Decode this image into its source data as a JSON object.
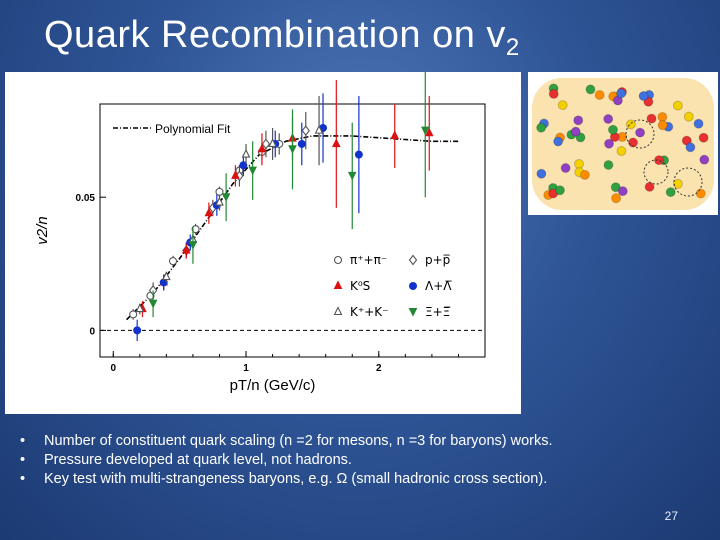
{
  "slide": {
    "title_main": "Quark Recombination on v",
    "title_sub": "2",
    "page_number": "27",
    "bullets": [
      "Number of constituent quark scaling (n =2 for mesons, n =3 for baryons) works.",
      "Pressure developed at quark level, not hadrons.",
      "Key test with multi-strangeness baryons, e.g. Ω (small hadronic cross section)."
    ]
  },
  "colors": {
    "background": "#2f5597",
    "meson_red": "#dd1111",
    "baryon_blue": "#1133cc",
    "xi_green": "#228833",
    "pion_gray": "#555555"
  },
  "chart_data": {
    "type": "scatter",
    "title": "",
    "xlabel": "pT/n (GeV/c)",
    "ylabel": "v2/n",
    "xlim": [
      -0.1,
      2.8
    ],
    "ylim": [
      -0.01,
      0.085
    ],
    "x_ticks": [
      "0",
      "1",
      "2"
    ],
    "x_tick_values": [
      0,
      1,
      2
    ],
    "y_ticks": [
      "0",
      "0.05"
    ],
    "y_tick_values": [
      0,
      0.05
    ],
    "fit": {
      "label": "Polynomial Fit",
      "points": [
        [
          0.1,
          0.004
        ],
        [
          0.3,
          0.014
        ],
        [
          0.5,
          0.027
        ],
        [
          0.7,
          0.041
        ],
        [
          0.9,
          0.055
        ],
        [
          1.1,
          0.066
        ],
        [
          1.3,
          0.071
        ],
        [
          1.5,
          0.073
        ],
        [
          1.8,
          0.073
        ],
        [
          2.1,
          0.072
        ],
        [
          2.4,
          0.071
        ],
        [
          2.6,
          0.071
        ]
      ]
    },
    "legend": [
      {
        "label": "π⁺+π⁻",
        "marker": "open-circle",
        "series": "pions"
      },
      {
        "label": "p+p̅",
        "marker": "open-diamond",
        "series": "protons"
      },
      {
        "label": "K⁰S",
        "marker": "filled-triangle",
        "series": "kshort"
      },
      {
        "label": "Λ+Λ̅",
        "marker": "filled-circle",
        "series": "lambda"
      },
      {
        "label": "K⁺+K⁻",
        "marker": "open-triangle",
        "series": "kcharged"
      },
      {
        "label": "Ξ+Ξ̅",
        "marker": "filled-star",
        "series": "xi"
      }
    ],
    "series": [
      {
        "name": "pions",
        "color": "#555555",
        "marker": "open-circle",
        "points": [
          [
            0.15,
            0.006,
            0.002
          ],
          [
            0.28,
            0.013,
            0.002
          ],
          [
            0.45,
            0.026,
            0.002
          ],
          [
            0.62,
            0.038,
            0.002
          ],
          [
            0.8,
            0.052,
            0.002
          ],
          [
            0.95,
            0.06,
            0.002
          ],
          [
            1.12,
            0.067,
            0.003
          ],
          [
            1.25,
            0.07,
            0.004
          ]
        ]
      },
      {
        "name": "protons",
        "color": "#555555",
        "marker": "open-diamond",
        "points": [
          [
            0.3,
            0.015,
            0.003
          ],
          [
            0.55,
            0.03,
            0.003
          ],
          [
            0.75,
            0.046,
            0.003
          ],
          [
            0.95,
            0.058,
            0.004
          ],
          [
            1.15,
            0.07,
            0.005
          ],
          [
            1.45,
            0.075,
            0.007
          ]
        ]
      },
      {
        "name": "kshort",
        "color": "#dd1111",
        "marker": "filled-triangle",
        "points": [
          [
            0.22,
            0.008,
            0.003
          ],
          [
            0.38,
            0.018,
            0.003
          ],
          [
            0.55,
            0.03,
            0.003
          ],
          [
            0.72,
            0.044,
            0.004
          ],
          [
            0.92,
            0.058,
            0.004
          ],
          [
            1.12,
            0.068,
            0.006
          ],
          [
            1.35,
            0.072,
            0.008
          ],
          [
            1.68,
            0.07,
            0.024
          ],
          [
            2.12,
            0.073,
            0.012
          ],
          [
            2.38,
            0.074,
            0.014
          ]
        ]
      },
      {
        "name": "lambda",
        "color": "#1133cc",
        "marker": "filled-circle",
        "points": [
          [
            0.18,
            0.0,
            0.004
          ],
          [
            0.38,
            0.018,
            0.003
          ],
          [
            0.58,
            0.033,
            0.003
          ],
          [
            0.78,
            0.047,
            0.004
          ],
          [
            0.98,
            0.062,
            0.004
          ],
          [
            1.22,
            0.07,
            0.005
          ],
          [
            1.42,
            0.07,
            0.008
          ],
          [
            1.58,
            0.076,
            0.013
          ],
          [
            1.85,
            0.066,
            0.022
          ]
        ]
      },
      {
        "name": "kcharged",
        "color": "#555555",
        "marker": "open-triangle",
        "points": [
          [
            0.2,
            0.008,
            0.002
          ],
          [
            0.4,
            0.02,
            0.002
          ],
          [
            0.6,
            0.034,
            0.002
          ],
          [
            0.8,
            0.048,
            0.003
          ],
          [
            1.0,
            0.066,
            0.004
          ],
          [
            1.2,
            0.07,
            0.006
          ],
          [
            1.55,
            0.075,
            0.013
          ]
        ]
      },
      {
        "name": "xi",
        "color": "#228833",
        "marker": "filled-star",
        "points": [
          [
            0.3,
            0.01,
            0.005
          ],
          [
            0.6,
            0.032,
            0.007
          ],
          [
            0.85,
            0.05,
            0.009
          ],
          [
            1.05,
            0.06,
            0.011
          ],
          [
            1.35,
            0.068,
            0.015
          ],
          [
            1.8,
            0.058,
            0.02
          ],
          [
            2.35,
            0.075,
            0.025
          ]
        ]
      }
    ]
  },
  "quark_image": {
    "colors": [
      "#f5d000",
      "#e83030",
      "#4070e0",
      "#30a040",
      "#9040c0",
      "#ff8c00"
    ]
  }
}
